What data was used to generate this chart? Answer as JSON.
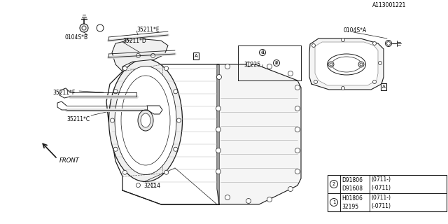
{
  "bg_color": "#ffffff",
  "line_color": "#1a1a1a",
  "gray": "#888888",
  "light_gray": "#cccccc",
  "title": "A113001221",
  "front_label": "FRONT",
  "labels": {
    "main_case": "32114",
    "sub_assy": "31225",
    "partC": "35211*C",
    "partF": "35211*F",
    "partD": "35211*D",
    "partE": "35211*E",
    "partB": "0104S*B",
    "partA": "0104S*A"
  },
  "legend": [
    {
      "circle": "1",
      "line1": "32195 (-0711)",
      "line2": "H01806(0711-)"
    },
    {
      "circle": "2",
      "line1": "D91608(-0711)",
      "line2": "D91806(0711-)"
    }
  ],
  "marker_A": "A"
}
